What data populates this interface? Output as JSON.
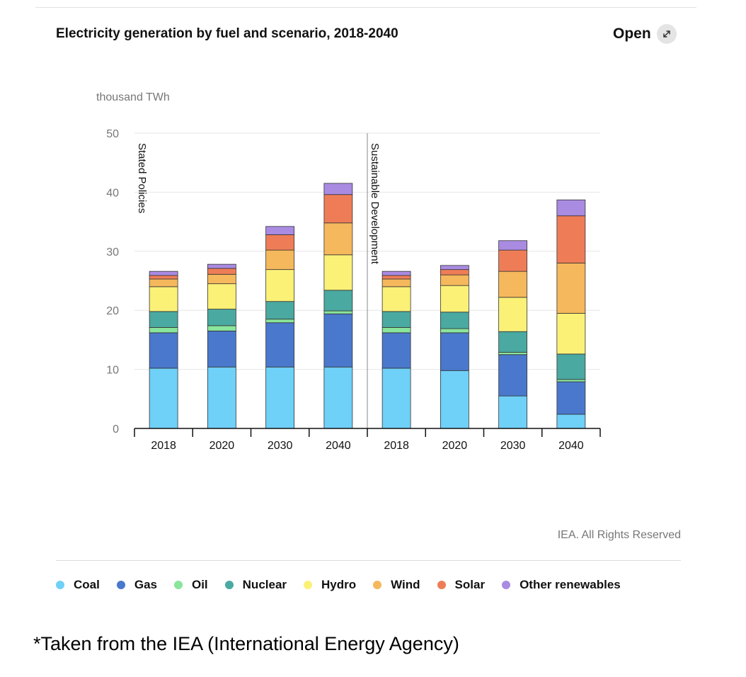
{
  "header": {
    "title": "Electricity generation by fuel and scenario, 2018-2040",
    "open_label": "Open",
    "open_icon": "expand-arrows-icon"
  },
  "credit": "IEA. All Rights Reserved",
  "footnote": "*Taken from the IEA (International Energy Agency)",
  "chart_data": {
    "type": "bar",
    "stacked": true,
    "ylabel": "thousand TWh",
    "ylim": [
      0,
      50
    ],
    "yticks": [
      0,
      10,
      20,
      30,
      40,
      50
    ],
    "grid": true,
    "legend_position": "bottom",
    "groups": [
      {
        "name": "Stated Policies",
        "categories": [
          "2018",
          "2020",
          "2030",
          "2040"
        ]
      },
      {
        "name": "Sustainable Development",
        "categories": [
          "2018",
          "2020",
          "2030",
          "2040"
        ]
      }
    ],
    "series": [
      {
        "name": "Coal",
        "color": "#6fd0f8",
        "values": [
          10.2,
          10.4,
          10.4,
          10.4,
          10.2,
          9.8,
          5.5,
          2.4
        ]
      },
      {
        "name": "Gas",
        "color": "#4a78cc",
        "values": [
          6.0,
          6.1,
          7.5,
          9.0,
          6.0,
          6.4,
          7.0,
          5.5
        ]
      },
      {
        "name": "Oil",
        "color": "#8ae59c",
        "values": [
          0.9,
          0.9,
          0.6,
          0.5,
          0.9,
          0.7,
          0.4,
          0.4
        ]
      },
      {
        "name": "Nuclear",
        "color": "#4aa9a1",
        "values": [
          2.7,
          2.8,
          3.0,
          3.5,
          2.7,
          2.8,
          3.5,
          4.3
        ]
      },
      {
        "name": "Hydro",
        "color": "#fbf177",
        "values": [
          4.2,
          4.3,
          5.4,
          6.0,
          4.2,
          4.5,
          5.8,
          6.9
        ]
      },
      {
        "name": "Wind",
        "color": "#f5b85c",
        "values": [
          1.3,
          1.6,
          3.3,
          5.4,
          1.3,
          1.8,
          4.4,
          8.5
        ]
      },
      {
        "name": "Solar",
        "color": "#ee7d57",
        "values": [
          0.6,
          1.0,
          2.6,
          4.8,
          0.6,
          0.9,
          3.6,
          8.0
        ]
      },
      {
        "name": "Other renewables",
        "color": "#a98be2",
        "values": [
          0.7,
          0.7,
          1.4,
          1.9,
          0.7,
          0.7,
          1.6,
          2.7
        ]
      }
    ]
  }
}
